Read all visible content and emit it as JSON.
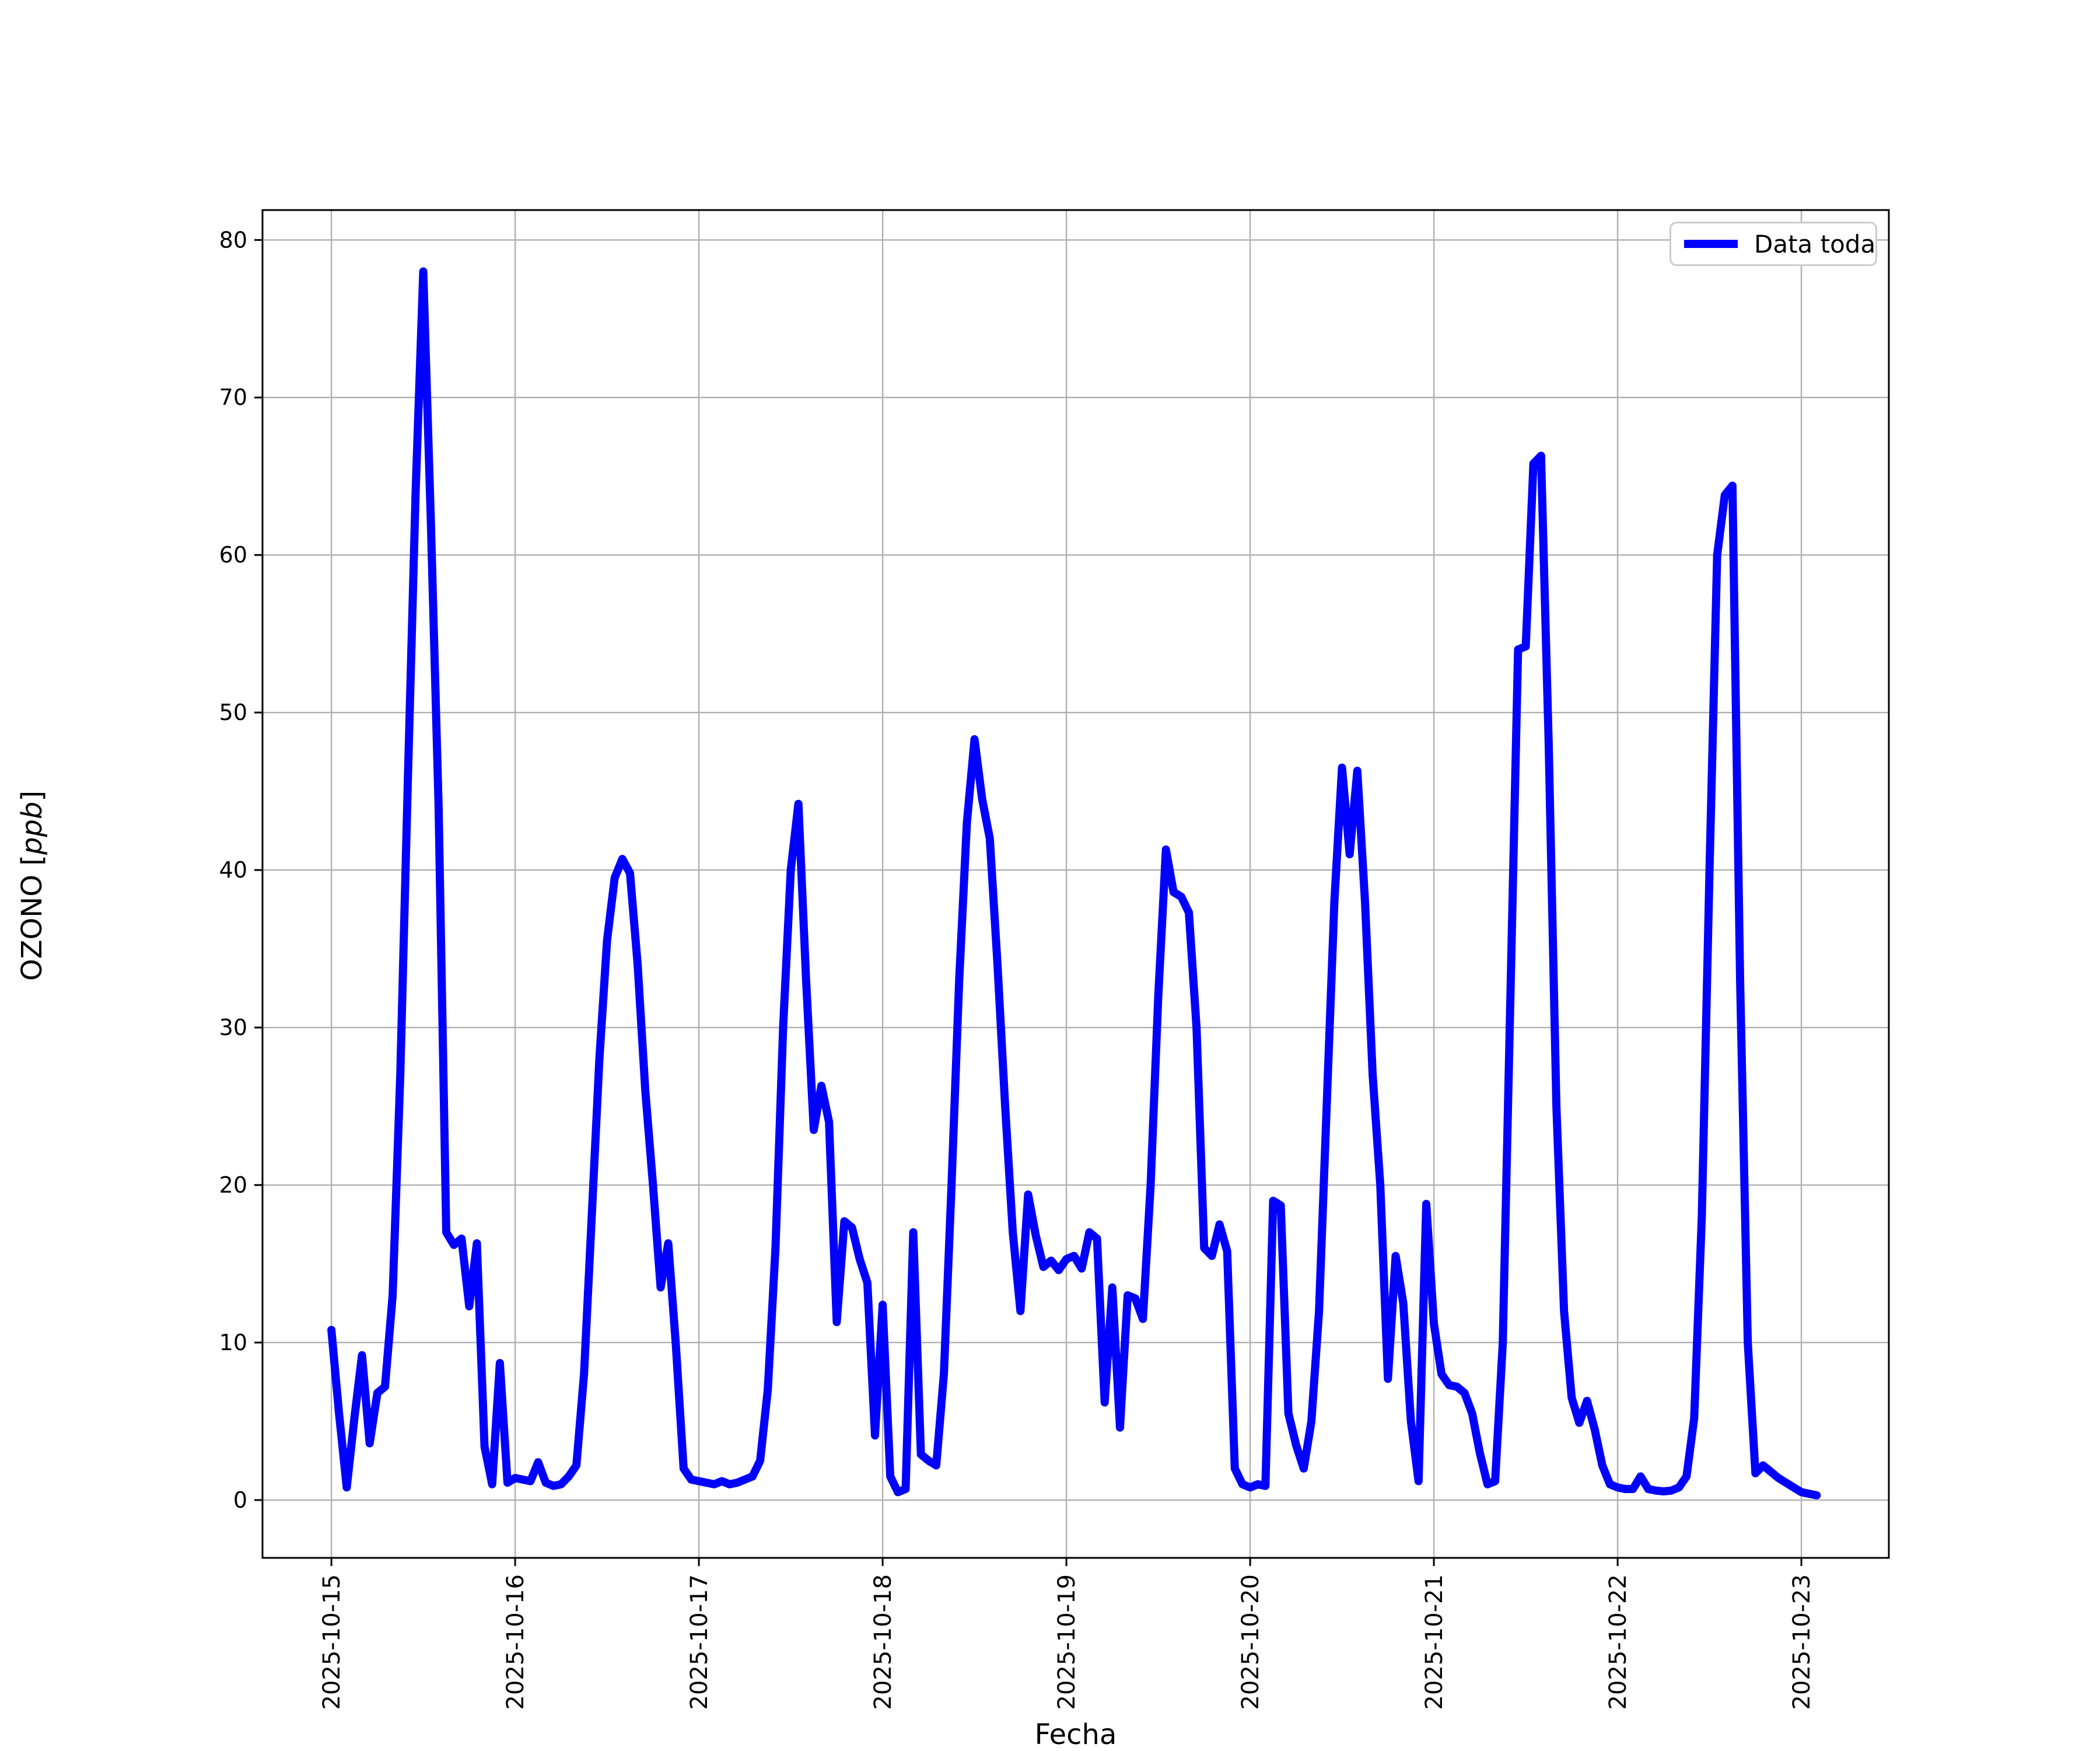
{
  "legend": {
    "label": "Data toda"
  },
  "axes": {
    "x_label": "Fecha",
    "y_label_prefix": "OZONO [",
    "y_label_unit": "ppb",
    "y_label_suffix": "]"
  },
  "chart_data": {
    "type": "line",
    "title": "",
    "xlabel": "Fecha",
    "ylabel": "OZONO [ppb]",
    "grid": true,
    "legend_position": "upper right",
    "line_color": "#0000ff",
    "grid_color": "#b0b0b0",
    "spine_color": "#000000",
    "background_color": "#ffffff",
    "x_start": "2025-10-15 00:00",
    "x_interval_hours": 1,
    "x_tick_labels": [
      "2025-10-15",
      "2025-10-16",
      "2025-10-17",
      "2025-10-18",
      "2025-10-19",
      "2025-10-20",
      "2025-10-21",
      "2025-10-22",
      "2025-10-23"
    ],
    "x_tick_days": [
      0,
      1,
      2,
      3,
      4,
      5,
      6,
      7,
      8
    ],
    "y_ticks": [
      0,
      10,
      20,
      30,
      40,
      50,
      60,
      70,
      80
    ],
    "xlim_days": [
      -0.375,
      8.476
    ],
    "ylim": [
      -3.67,
      81.9
    ],
    "series": [
      {
        "name": "Data toda",
        "values": [
          10.8,
          5.5,
          0.8,
          5.2,
          9.2,
          3.6,
          6.8,
          7.2,
          13.0,
          27.0,
          46.0,
          64.0,
          78.0,
          62.0,
          44.0,
          17.0,
          16.2,
          16.6,
          12.3,
          16.3,
          3.4,
          1.0,
          8.7,
          1.1,
          1.4,
          1.3,
          1.2,
          2.4,
          1.1,
          0.9,
          1.0,
          1.5,
          2.2,
          8.0,
          18.0,
          28.0,
          35.5,
          39.5,
          40.7,
          39.8,
          34.0,
          26.0,
          20.0,
          13.5,
          16.3,
          9.8,
          2.0,
          1.3,
          1.2,
          1.1,
          1.0,
          1.2,
          1.0,
          1.1,
          1.3,
          1.5,
          2.5,
          7.0,
          16.0,
          30.0,
          40.0,
          44.2,
          33.0,
          23.5,
          26.3,
          24.0,
          11.3,
          17.7,
          17.3,
          15.3,
          13.8,
          4.1,
          12.4,
          1.5,
          0.5,
          0.7,
          17.0,
          2.9,
          2.5,
          2.2,
          8.0,
          20.0,
          33.0,
          43.0,
          48.3,
          44.5,
          42.0,
          34.0,
          25.0,
          17.0,
          12.0,
          19.4,
          16.8,
          14.8,
          15.2,
          14.6,
          15.3,
          15.5,
          14.7,
          17.0,
          16.6,
          6.2,
          13.5,
          4.6,
          13.0,
          12.8,
          11.5,
          20.0,
          32.0,
          41.3,
          38.6,
          38.3,
          37.3,
          30.0,
          16.0,
          15.5,
          17.5,
          15.8,
          2.0,
          1.0,
          0.8,
          1.0,
          0.9,
          19.0,
          18.7,
          5.5,
          3.5,
          2.0,
          5.0,
          12.0,
          25.0,
          38.0,
          46.5,
          41.0,
          46.3,
          38.0,
          27.0,
          20.0,
          7.7,
          15.5,
          12.5,
          5.0,
          1.2,
          18.8,
          11.2,
          8.0,
          7.3,
          7.2,
          6.8,
          5.5,
          3.0,
          1.0,
          1.2,
          10.0,
          32.0,
          54.0,
          54.2,
          65.8,
          66.3,
          48.0,
          25.0,
          12.0,
          6.5,
          4.9,
          6.3,
          4.5,
          2.2,
          1.0,
          0.8,
          0.7,
          0.7,
          1.5,
          0.7,
          0.6,
          0.55,
          0.6,
          0.8,
          1.5,
          5.2,
          18.0,
          40.0,
          60.0,
          63.8,
          64.4,
          32.9,
          10.0,
          1.7,
          2.2,
          1.8,
          1.4,
          1.1,
          0.8,
          0.5,
          0.4,
          0.3
        ]
      }
    ]
  }
}
